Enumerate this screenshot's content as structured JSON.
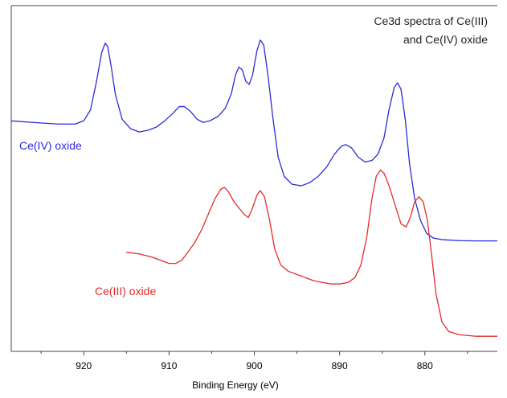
{
  "chart_data": {
    "type": "line",
    "title": [
      "Ce3d spectra of Ce(III)",
      "and Ce(IV) oxide"
    ],
    "xlabel": "Binding Energy (eV)",
    "ylabel": "",
    "xlim": [
      928.5,
      871.5
    ],
    "x_reversed": true,
    "ylim": [
      0,
      1
    ],
    "x_ticks": [
      920,
      910,
      900,
      890,
      880
    ],
    "x_tick_labels": [
      "920",
      "910",
      "900",
      "890",
      "880"
    ],
    "grid": false,
    "series": [
      {
        "name": "Ce(IV) oxide",
        "color": "#2b2bdc",
        "points": [
          [
            928.5,
            0.715
          ],
          [
            926,
            0.71
          ],
          [
            923,
            0.705
          ],
          [
            921,
            0.705
          ],
          [
            920,
            0.715
          ],
          [
            919.2,
            0.75
          ],
          [
            918.5,
            0.84
          ],
          [
            917.9,
            0.93
          ],
          [
            917.5,
            0.96
          ],
          [
            917.2,
            0.95
          ],
          [
            916.8,
            0.89
          ],
          [
            916.3,
            0.8
          ],
          [
            915.5,
            0.72
          ],
          [
            914.5,
            0.69
          ],
          [
            913.5,
            0.68
          ],
          [
            912.5,
            0.685
          ],
          [
            911.5,
            0.695
          ],
          [
            910.5,
            0.715
          ],
          [
            909.5,
            0.74
          ],
          [
            908.8,
            0.76
          ],
          [
            908.2,
            0.76
          ],
          [
            907.5,
            0.745
          ],
          [
            906.7,
            0.72
          ],
          [
            906.0,
            0.71
          ],
          [
            905.2,
            0.715
          ],
          [
            904.2,
            0.73
          ],
          [
            903.4,
            0.755
          ],
          [
            902.7,
            0.8
          ],
          [
            902.2,
            0.86
          ],
          [
            901.8,
            0.885
          ],
          [
            901.4,
            0.875
          ],
          [
            901.0,
            0.84
          ],
          [
            900.6,
            0.83
          ],
          [
            900.2,
            0.86
          ],
          [
            899.7,
            0.935
          ],
          [
            899.3,
            0.97
          ],
          [
            898.9,
            0.955
          ],
          [
            898.4,
            0.86
          ],
          [
            897.8,
            0.72
          ],
          [
            897.2,
            0.6
          ],
          [
            896.5,
            0.54
          ],
          [
            895.6,
            0.515
          ],
          [
            894.5,
            0.51
          ],
          [
            893.5,
            0.52
          ],
          [
            892.5,
            0.54
          ],
          [
            891.5,
            0.57
          ],
          [
            890.6,
            0.61
          ],
          [
            889.8,
            0.635
          ],
          [
            889.3,
            0.64
          ],
          [
            888.6,
            0.63
          ],
          [
            887.8,
            0.6
          ],
          [
            887.0,
            0.585
          ],
          [
            886.2,
            0.59
          ],
          [
            885.5,
            0.61
          ],
          [
            884.8,
            0.66
          ],
          [
            884.2,
            0.75
          ],
          [
            883.6,
            0.82
          ],
          [
            883.2,
            0.835
          ],
          [
            882.8,
            0.815
          ],
          [
            882.3,
            0.72
          ],
          [
            881.8,
            0.58
          ],
          [
            881.2,
            0.47
          ],
          [
            880.5,
            0.4
          ],
          [
            879.8,
            0.36
          ],
          [
            879.0,
            0.345
          ],
          [
            878.0,
            0.34
          ],
          [
            876.0,
            0.337
          ],
          [
            874.0,
            0.336
          ],
          [
            871.5,
            0.336
          ]
        ]
      },
      {
        "name": "Ce(III) oxide",
        "color": "#e62a2a",
        "points": [
          [
            915.0,
            0.3
          ],
          [
            913.5,
            0.295
          ],
          [
            912.0,
            0.285
          ],
          [
            911.0,
            0.275
          ],
          [
            910.0,
            0.265
          ],
          [
            909.2,
            0.265
          ],
          [
            908.5,
            0.275
          ],
          [
            907.8,
            0.3
          ],
          [
            907.0,
            0.33
          ],
          [
            906.2,
            0.37
          ],
          [
            905.4,
            0.42
          ],
          [
            904.6,
            0.47
          ],
          [
            903.9,
            0.5
          ],
          [
            903.5,
            0.505
          ],
          [
            903.0,
            0.49
          ],
          [
            902.4,
            0.46
          ],
          [
            901.8,
            0.44
          ],
          [
            901.2,
            0.42
          ],
          [
            900.7,
            0.41
          ],
          [
            900.2,
            0.44
          ],
          [
            899.7,
            0.48
          ],
          [
            899.3,
            0.495
          ],
          [
            898.8,
            0.475
          ],
          [
            898.2,
            0.4
          ],
          [
            897.6,
            0.31
          ],
          [
            896.9,
            0.26
          ],
          [
            896.0,
            0.24
          ],
          [
            895.0,
            0.23
          ],
          [
            894.0,
            0.22
          ],
          [
            893.0,
            0.21
          ],
          [
            892.0,
            0.205
          ],
          [
            891.0,
            0.2
          ],
          [
            890.0,
            0.2
          ],
          [
            889.0,
            0.205
          ],
          [
            888.2,
            0.22
          ],
          [
            887.5,
            0.26
          ],
          [
            886.8,
            0.35
          ],
          [
            886.2,
            0.47
          ],
          [
            885.7,
            0.54
          ],
          [
            885.2,
            0.56
          ],
          [
            884.8,
            0.55
          ],
          [
            884.2,
            0.51
          ],
          [
            883.5,
            0.45
          ],
          [
            882.8,
            0.39
          ],
          [
            882.2,
            0.38
          ],
          [
            881.7,
            0.41
          ],
          [
            881.2,
            0.46
          ],
          [
            880.7,
            0.475
          ],
          [
            880.2,
            0.46
          ],
          [
            879.7,
            0.4
          ],
          [
            879.2,
            0.29
          ],
          [
            878.7,
            0.17
          ],
          [
            878.0,
            0.08
          ],
          [
            877.2,
            0.05
          ],
          [
            876.0,
            0.04
          ],
          [
            874.0,
            0.035
          ],
          [
            871.5,
            0.035
          ]
        ]
      }
    ],
    "annotations": [
      "Ce(IV) oxide",
      "Ce(III) oxide"
    ]
  }
}
